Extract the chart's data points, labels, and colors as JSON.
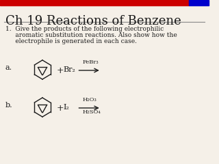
{
  "title": "Ch 19 Reactions of Benzene",
  "header_bar_colors": [
    "#cc0000",
    "#0000cc"
  ],
  "bg_color": "#f5f0e8",
  "question_text": "1.  Give the products of the following electrophilic\n     aromatic substitution reactions. Also show how the\n     electrophile is generated in each case.",
  "label_a": "a.",
  "label_b": "b.",
  "plus_symbol": "+",
  "reagent_a": "Br₂",
  "catalyst_a": "FeBr₃",
  "reagent_b": "I₂",
  "catalyst_b_top": "H₂O₃",
  "catalyst_b_bottom": "H₂SO₄",
  "font_color": "#1a1a1a",
  "title_fontsize": 13,
  "body_fontsize": 6.5,
  "label_fontsize": 8,
  "chem_fontsize": 7
}
